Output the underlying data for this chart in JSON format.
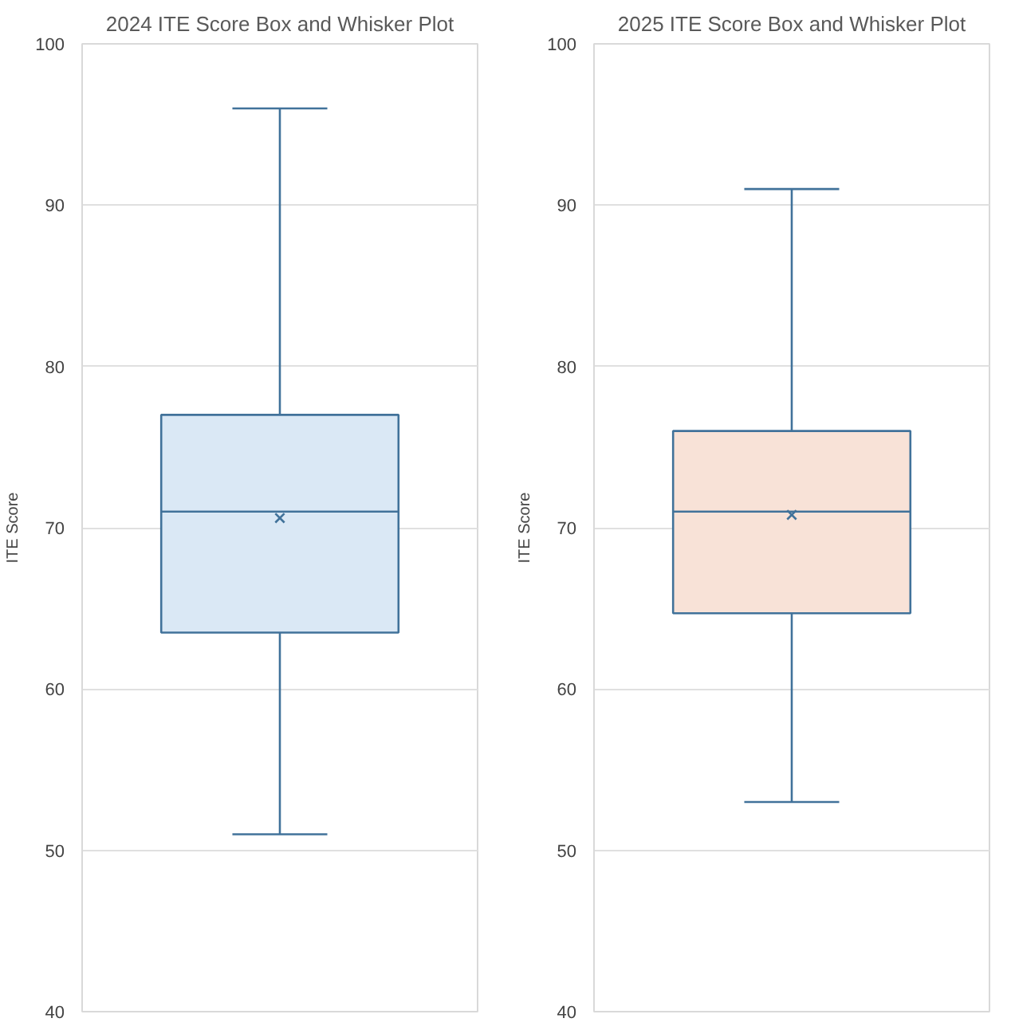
{
  "chart_data": [
    {
      "type": "box",
      "title": "2024 ITE Score Box and Whisker Plot",
      "ylabel": "ITE Score",
      "categories": [
        null
      ],
      "ylim": [
        40,
        100
      ],
      "yticks": [
        40,
        50,
        60,
        70,
        80,
        90,
        100
      ],
      "grid": "y",
      "series": [
        {
          "color": "#dae8f5",
          "boxes": [
            {
              "low": 51,
              "q1": 63.5,
              "median": 71,
              "q3": 77,
              "high": 96,
              "mean": 70.6
            }
          ]
        }
      ]
    },
    {
      "type": "box",
      "title": "2025 ITE Score Box and Whisker Plot",
      "ylabel": "ITE Score",
      "categories": [
        null
      ],
      "ylim": [
        40,
        100
      ],
      "yticks": [
        40,
        50,
        60,
        70,
        80,
        90,
        100
      ],
      "grid": "y",
      "series": [
        {
          "color": "#f8e2d7",
          "boxes": [
            {
              "low": 53,
              "q1": 64.7,
              "median": 71,
              "q3": 76,
              "high": 91,
              "mean": 70.8
            }
          ]
        }
      ]
    }
  ]
}
